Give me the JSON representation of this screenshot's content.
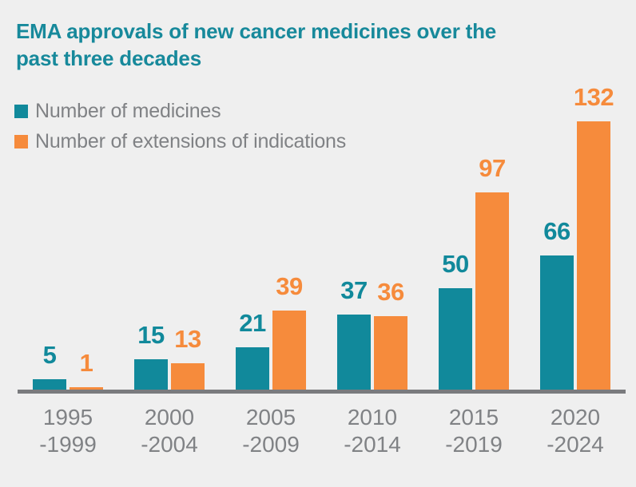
{
  "title_lines": [
    "EMA approvals of new cancer medicines over the",
    "past three decades"
  ],
  "colors": {
    "background": "#EFEFEF",
    "teal": "#11899B",
    "orange": "#F68B3C",
    "title_text": "#17899B",
    "legend_text": "#808285",
    "axis_label_text": "#808285",
    "axis_line": "#7A7B7E"
  },
  "legend": {
    "items": [
      {
        "label": "Number of medicines",
        "color_key": "teal"
      },
      {
        "label": "Number of extensions of indications",
        "color_key": "orange"
      }
    ]
  },
  "chart_data": {
    "type": "bar",
    "title": "EMA approvals of new cancer medicines over the past three decades",
    "categories": [
      [
        "1995",
        "-1999"
      ],
      [
        "2000",
        "-2004"
      ],
      [
        "2005",
        "-2009"
      ],
      [
        "2010",
        "-2014"
      ],
      [
        "2015",
        "-2019"
      ],
      [
        "2020",
        "-2024"
      ]
    ],
    "series": [
      {
        "name": "Number of medicines",
        "color_key": "teal",
        "values": [
          5,
          15,
          21,
          37,
          50,
          66
        ]
      },
      {
        "name": "Number of extensions of indications",
        "color_key": "orange",
        "values": [
          1,
          13,
          39,
          36,
          97,
          132
        ]
      }
    ],
    "data_labels": true,
    "grid": false,
    "legend_position": "top-left",
    "xlabel": "",
    "ylabel": "",
    "ylim": [
      0,
      140
    ]
  }
}
